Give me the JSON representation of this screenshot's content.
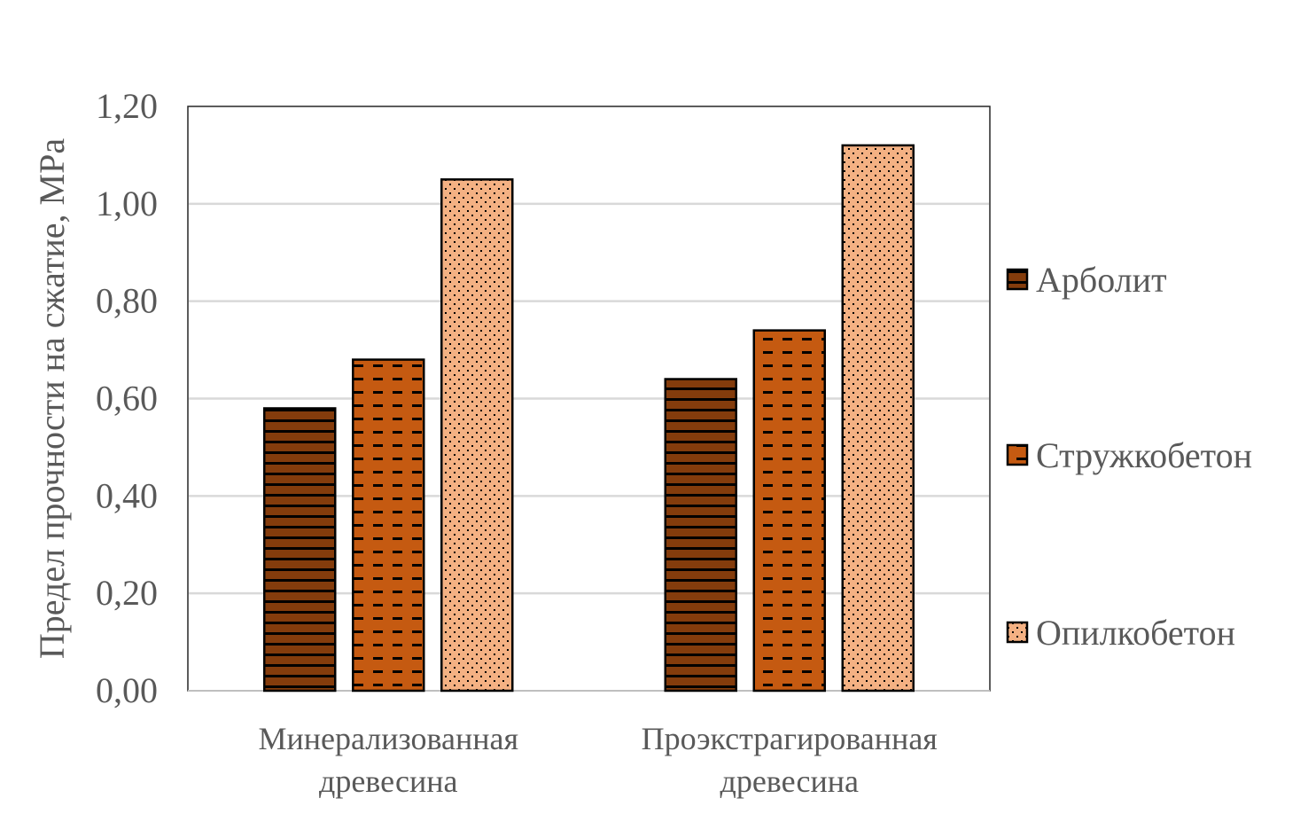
{
  "chart_data": {
    "type": "bar",
    "title": "",
    "xlabel": "",
    "ylabel": "Предел прочности на сжатие, МРа",
    "ylim": [
      0,
      1.2
    ],
    "yticks": [
      "0,00",
      "0,20",
      "0,40",
      "0,60",
      "0,80",
      "1,00",
      "1,20"
    ],
    "grid": true,
    "legend_position": "right",
    "categories": [
      [
        "Минерализованная",
        "древесина"
      ],
      [
        "Проэкстрагированная",
        "древесина"
      ]
    ],
    "series": [
      {
        "name": "Арболит",
        "values": [
          0.58,
          0.64
        ],
        "color": "#843C0C",
        "pattern": "horizontal-lines"
      },
      {
        "name": "Стружкобетон",
        "values": [
          0.68,
          0.74
        ],
        "color": "#C55A11",
        "pattern": "dashes"
      },
      {
        "name": "Опилкобетон",
        "values": [
          1.05,
          1.12
        ],
        "color": "#F4B183",
        "pattern": "dots"
      }
    ]
  }
}
